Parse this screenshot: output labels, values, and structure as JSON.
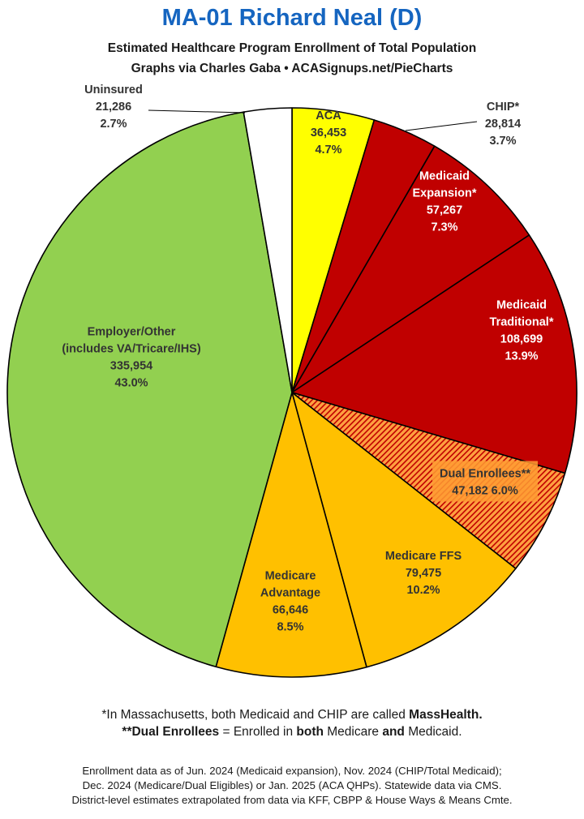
{
  "header": {
    "title": "MA-01 Richard Neal (D)",
    "subtitle_line1": "Estimated Healthcare Program Enrollment of Total Population",
    "subtitle_line2": "Graphs via Charles Gaba  •  ACASignups.net/PieCharts"
  },
  "chart_data": {
    "type": "pie",
    "title": "MA-01 Richard Neal (D)",
    "subtitle": "Estimated Healthcare Program Enrollment of Total Population",
    "slices": [
      {
        "lines": [
          "ACA"
        ],
        "value_text": "36,453",
        "pct_text": "4.7%",
        "value": 36453,
        "percent": 4.7,
        "color": "#ffff00",
        "label_color": "#333333"
      },
      {
        "lines": [
          "CHIP*"
        ],
        "value_text": "28,814",
        "pct_text": "3.7%",
        "value": 28814,
        "percent": 3.7,
        "color": "#c00000",
        "label_color": "#333333"
      },
      {
        "lines": [
          "Medicaid",
          "Expansion*"
        ],
        "value_text": "57,267",
        "pct_text": "7.3%",
        "value": 57267,
        "percent": 7.3,
        "color": "#c00000",
        "label_color": "#ffffff"
      },
      {
        "lines": [
          "Medicaid",
          "Traditional*"
        ],
        "value_text": "108,699",
        "pct_text": "13.9%",
        "value": 108699,
        "percent": 13.9,
        "color": "#c00000",
        "label_color": "#ffffff"
      },
      {
        "lines": [
          "Dual Enrollees**"
        ],
        "value_text": "47,182",
        "pct_text": "6.0%",
        "value": 47182,
        "percent": 6.0,
        "color": "#c00000",
        "pattern": "hatched",
        "label_color": "#333333"
      },
      {
        "lines": [
          "Medicare FFS"
        ],
        "value_text": "79,475",
        "pct_text": "10.2%",
        "value": 79475,
        "percent": 10.2,
        "color": "#ffc000",
        "label_color": "#333333"
      },
      {
        "lines": [
          "Medicare",
          "Advantage"
        ],
        "value_text": "66,646",
        "pct_text": "8.5%",
        "value": 66646,
        "percent": 8.5,
        "color": "#ffc000",
        "label_color": "#333333"
      },
      {
        "lines": [
          "Employer/Other",
          "(includes VA/Tricare/IHS)"
        ],
        "value_text": "335,954",
        "pct_text": "43.0%",
        "value": 335954,
        "percent": 43.0,
        "color": "#92d050",
        "label_color": "#333333"
      },
      {
        "lines": [
          "Uninsured"
        ],
        "value_text": "21,286",
        "pct_text": "2.7%",
        "value": 21286,
        "percent": 2.7,
        "color": "#ffffff",
        "label_color": "#333333"
      }
    ]
  },
  "footnotes": {
    "line1_prefix": "*In Massachusetts, both Medicaid and CHIP are called ",
    "line1_bold": "MassHealth.",
    "line2_bold1": "**Dual Enrollees",
    "line2_mid1": " = Enrolled in ",
    "line2_bold2": "both",
    "line2_mid2": " Medicare ",
    "line2_bold3": "and",
    "line2_end": " Medicaid."
  },
  "source": {
    "line1": "Enrollment data as of Jun. 2024 (Medicaid expansion), Nov. 2024 (CHIP/Total Medicaid);",
    "line2": "Dec. 2024 (Medicare/Dual Eligibles) or Jan. 2025 (ACA QHPs). Statewide data via CMS.",
    "line3": "District-level estimates extrapolated from data via KFF, CBPP & House Ways & Means Cmte."
  }
}
